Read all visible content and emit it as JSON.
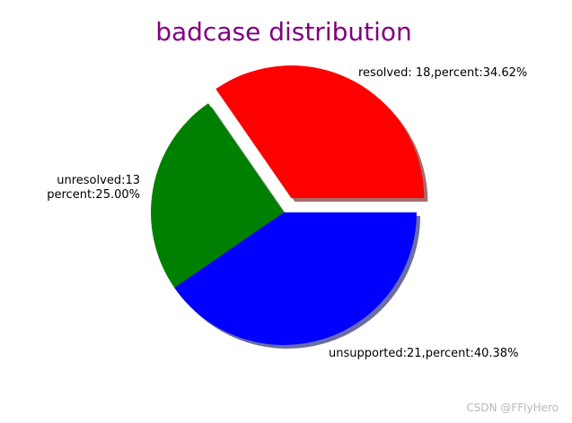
{
  "chart_data": {
    "type": "pie",
    "title": "badcase distribution",
    "title_color": "#800080",
    "slices": [
      {
        "name": "resolved",
        "value": 18,
        "color": "#ff0000",
        "explode": true,
        "label_lines": [
          "resolved: 18,percent:34.62%"
        ]
      },
      {
        "name": "unresolved",
        "value": 13,
        "color": "#008000",
        "explode": false,
        "label_lines": [
          "unresolved:13",
          "percent:25.00%"
        ]
      },
      {
        "name": "unsupported",
        "value": 21,
        "color": "#0000ff",
        "explode": false,
        "label_lines": [
          "unsupported:21,percent:40.38%"
        ]
      }
    ],
    "shadow": true,
    "start_angle_deg": 0,
    "direction": "counterclockwise"
  },
  "watermark": "CSDN @FFlyHero"
}
